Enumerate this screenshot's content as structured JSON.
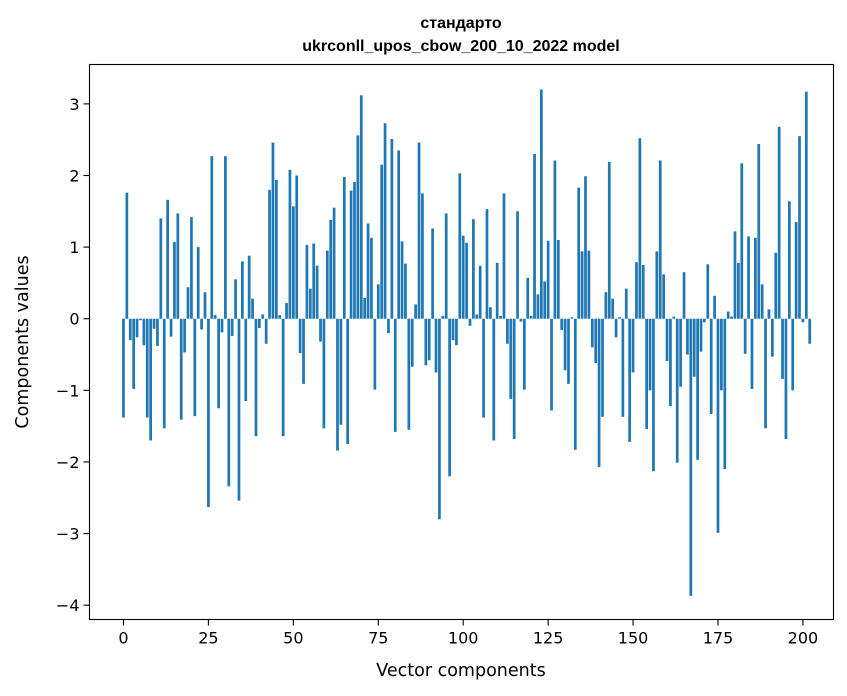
{
  "chart_data": {
    "type": "bar",
    "title_line1": "стандарто",
    "title_line2": "ukrconll_upos_cbow_200_10_2022 model",
    "xlabel": "Vector components",
    "ylabel": "Components values",
    "xlim": [
      -10,
      209
    ],
    "ylim": [
      -4.2,
      3.55
    ],
    "xticks": [
      0,
      25,
      50,
      75,
      100,
      125,
      150,
      175,
      200
    ],
    "yticks": [
      -4,
      -3,
      -2,
      -1,
      0,
      1,
      2,
      3
    ],
    "xtick_labels": [
      "0",
      "25",
      "50",
      "75",
      "100",
      "125",
      "150",
      "175",
      "200"
    ],
    "ytick_labels": [
      "−4",
      "−3",
      "−2",
      "−1",
      "0",
      "1",
      "2",
      "3"
    ],
    "color": "#1f77b4",
    "values": [
      -1.38,
      1.76,
      -0.3,
      -0.98,
      -0.26,
      -0.02,
      -0.37,
      -1.38,
      -1.7,
      -0.14,
      -0.38,
      1.4,
      -1.53,
      1.66,
      -0.25,
      1.07,
      1.47,
      -1.41,
      -0.47,
      0.44,
      1.42,
      -1.36,
      1.0,
      -0.15,
      0.37,
      -2.63,
      2.27,
      0.05,
      -1.25,
      -0.19,
      2.27,
      -2.34,
      -0.24,
      0.55,
      -2.54,
      0.8,
      -1.15,
      0.88,
      0.28,
      -1.64,
      -0.13,
      0.06,
      -0.35,
      1.8,
      2.46,
      1.94,
      0.05,
      -1.64,
      0.22,
      2.08,
      1.57,
      2.0,
      -0.48,
      -0.91,
      1.03,
      0.42,
      1.05,
      0.74,
      -0.32,
      -1.53,
      0.95,
      1.38,
      1.55,
      -1.84,
      -1.48,
      1.98,
      -1.75,
      1.79,
      1.91,
      2.56,
      3.12,
      0.29,
      1.33,
      1.13,
      -0.99,
      0.48,
      2.15,
      2.73,
      -0.2,
      2.51,
      -1.58,
      2.35,
      1.08,
      0.77,
      -1.55,
      -0.67,
      0.2,
      2.46,
      1.75,
      -0.65,
      -0.58,
      1.26,
      -0.75,
      -2.8,
      0.04,
      1.47,
      -2.2,
      -0.3,
      -0.37,
      2.03,
      1.16,
      1.06,
      -0.1,
      1.39,
      0.06,
      0.74,
      -1.38,
      1.53,
      0.16,
      -1.7,
      0.78,
      0.04,
      1.75,
      -0.35,
      -1.12,
      -1.68,
      1.5,
      -0.04,
      -0.99,
      0.57,
      0.04,
      2.3,
      0.34,
      3.2,
      0.52,
      1.09,
      -1.28,
      2.21,
      1.1,
      -0.16,
      -0.72,
      -0.91,
      0.02,
      -1.83,
      1.83,
      0.94,
      1.99,
      0.95,
      -0.4,
      -0.62,
      -2.07,
      -1.37,
      0.37,
      2.19,
      0.28,
      -0.26,
      0.02,
      -1.37,
      0.42,
      -1.72,
      -0.75,
      0.79,
      2.52,
      0.75,
      -1.54,
      -1.0,
      -2.13,
      0.94,
      2.21,
      0.62,
      -0.59,
      -1.22,
      0.03,
      -2.01,
      -0.95,
      0.65,
      -0.5,
      -3.87,
      -0.81,
      -1.97,
      -0.46,
      -0.05,
      0.76,
      -1.33,
      0.32,
      -2.99,
      -1.0,
      -2.1,
      0.1,
      0.03,
      1.22,
      0.78,
      2.17,
      -0.49,
      1.15,
      -0.98,
      1.13,
      2.44,
      0.48,
      -1.53,
      0.13,
      -0.53,
      0.92,
      2.68,
      -0.84,
      -1.68,
      1.64,
      -1.0,
      1.35,
      2.55,
      -0.05,
      3.17,
      -0.35
    ]
  }
}
